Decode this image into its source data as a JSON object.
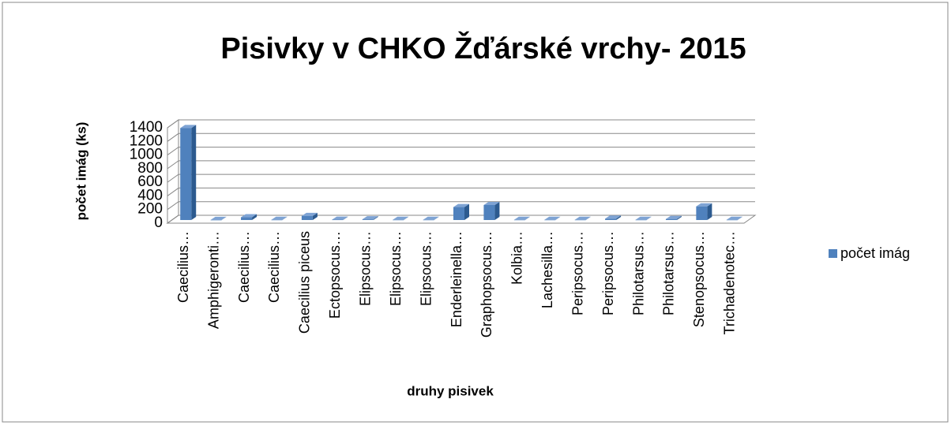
{
  "chart_data": {
    "type": "bar3d",
    "title": "Pisivky v CHKO Žďárské vrchy- 2015",
    "x_label": "druhy pisivek",
    "y_label": "počet imág (ks)",
    "categories": [
      "Caecilius…",
      "Amphigeronti…",
      "Caecilius…",
      "Caecilius…",
      "Caecilius piceus",
      "Ectopsocus…",
      "Elipsocus…",
      "Elipsocus…",
      "Elipsocus…",
      "Enderleinella…",
      "Graphopsocus…",
      "Kolbia…",
      "Lachesilla…",
      "Peripsocus…",
      "Peripsocus…",
      "Philotarsus…",
      "Philotarsus…",
      "Stenopsocus…",
      "Trichadenotec…"
    ],
    "series": [
      {
        "name": "počet imág",
        "color": "#4f81bd",
        "values": [
          1350,
          2,
          40,
          3,
          60,
          5,
          10,
          3,
          3,
          190,
          220,
          3,
          3,
          3,
          20,
          3,
          15,
          200,
          3
        ]
      }
    ],
    "ylim": [
      0,
      1400
    ],
    "yticks": [
      0,
      200,
      400,
      600,
      800,
      1000,
      1200,
      1400
    ],
    "grid": true,
    "legend": "right"
  }
}
